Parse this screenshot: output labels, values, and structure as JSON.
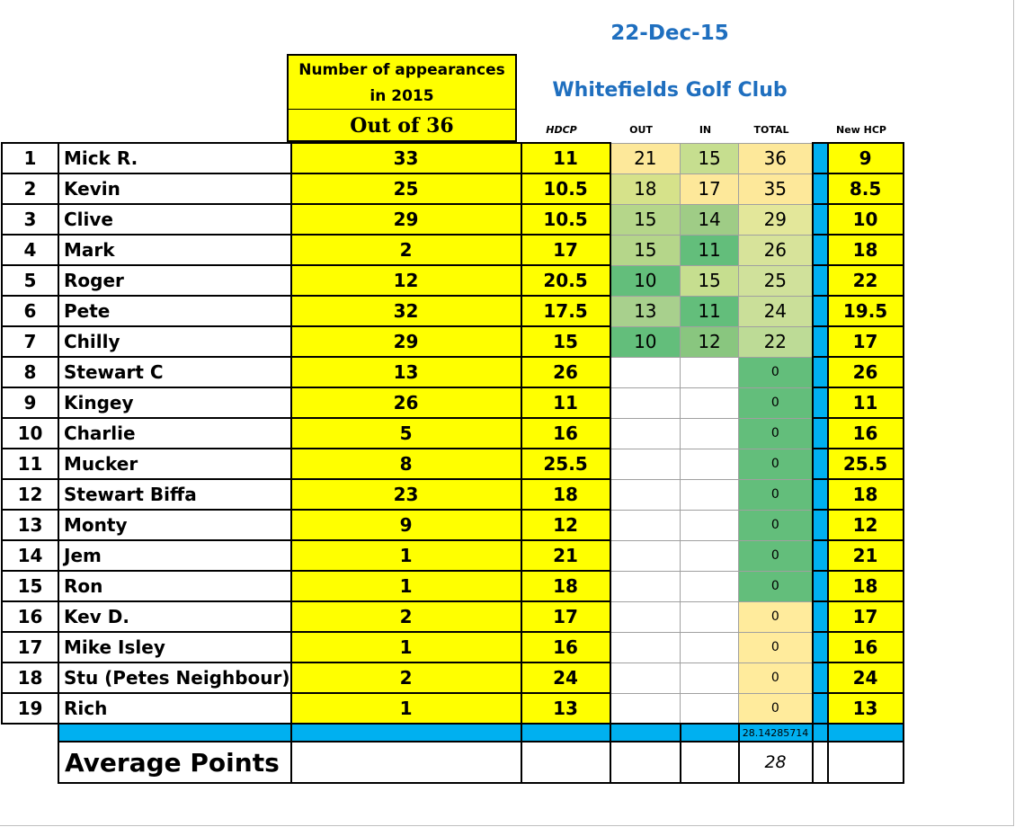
{
  "date": "22-Dec-15",
  "club": "Whitefields Golf Club",
  "appearances_header": "Number of appearances in 2015",
  "out_of": "Out of 36",
  "headers": {
    "hdcp": "HDCP",
    "out": "OUT",
    "in": "IN",
    "total": "TOTAL",
    "new_hcp": "New HCP"
  },
  "colors": {
    "yellow": "#ffff00",
    "blue_bar": "#00b0f0",
    "title_blue": "#1f6fbf"
  },
  "players": [
    {
      "pos": "1",
      "name": "Mick R.",
      "apps": "33",
      "hdcp": "11",
      "out": "21",
      "in": "15",
      "total": "36",
      "new": "9"
    },
    {
      "pos": "2",
      "name": "Kevin",
      "apps": "25",
      "hdcp": "10.5",
      "out": "18",
      "in": "17",
      "total": "35",
      "new": "8.5"
    },
    {
      "pos": "3",
      "name": "Clive",
      "apps": "29",
      "hdcp": "10.5",
      "out": "15",
      "in": "14",
      "total": "29",
      "new": "10"
    },
    {
      "pos": "4",
      "name": "Mark",
      "apps": "2",
      "hdcp": "17",
      "out": "15",
      "in": "11",
      "total": "26",
      "new": "18"
    },
    {
      "pos": "5",
      "name": "Roger",
      "apps": "12",
      "hdcp": "20.5",
      "out": "10",
      "in": "15",
      "total": "25",
      "new": "22"
    },
    {
      "pos": "6",
      "name": "Pete",
      "apps": "32",
      "hdcp": "17.5",
      "out": "13",
      "in": "11",
      "total": "24",
      "new": "19.5"
    },
    {
      "pos": "7",
      "name": "Chilly",
      "apps": "29",
      "hdcp": "15",
      "out": "10",
      "in": "12",
      "total": "22",
      "new": "17"
    },
    {
      "pos": "8",
      "name": "Stewart C",
      "apps": "13",
      "hdcp": "26",
      "out": "",
      "in": "",
      "total": "0",
      "new": "26"
    },
    {
      "pos": "9",
      "name": "Kingey",
      "apps": "26",
      "hdcp": "11",
      "out": "",
      "in": "",
      "total": "0",
      "new": "11"
    },
    {
      "pos": "10",
      "name": "Charlie",
      "apps": "5",
      "hdcp": "16",
      "out": "",
      "in": "",
      "total": "0",
      "new": "16"
    },
    {
      "pos": "11",
      "name": "Mucker",
      "apps": "8",
      "hdcp": "25.5",
      "out": "",
      "in": "",
      "total": "0",
      "new": "25.5"
    },
    {
      "pos": "12",
      "name": "Stewart Biffa",
      "apps": "23",
      "hdcp": "18",
      "out": "",
      "in": "",
      "total": "0",
      "new": "18"
    },
    {
      "pos": "13",
      "name": "Monty",
      "apps": "9",
      "hdcp": "12",
      "out": "",
      "in": "",
      "total": "0",
      "new": "12"
    },
    {
      "pos": "14",
      "name": "Jem",
      "apps": "1",
      "hdcp": "21",
      "out": "",
      "in": "",
      "total": "0",
      "new": "21"
    },
    {
      "pos": "15",
      "name": "Ron",
      "apps": "1",
      "hdcp": "18",
      "out": "",
      "in": "",
      "total": "0",
      "new": "18"
    },
    {
      "pos": "16",
      "name": "Kev D.",
      "apps": "2",
      "hdcp": "17",
      "out": "",
      "in": "",
      "total": "0",
      "new": "17"
    },
    {
      "pos": "17",
      "name": "Mike Isley",
      "apps": "1",
      "hdcp": "16",
      "out": "",
      "in": "",
      "total": "0",
      "new": "16"
    },
    {
      "pos": "18",
      "name": "Stu (Petes Neighbour)",
      "apps": "2",
      "hdcp": "24",
      "out": "",
      "in": "",
      "total": "0",
      "new": "24"
    },
    {
      "pos": "19",
      "name": "Rich",
      "apps": "1",
      "hdcp": "13",
      "out": "",
      "in": "",
      "total": "0",
      "new": "13"
    }
  ],
  "cell_colors": {
    "out": [
      "#fde89a",
      "#d6e28a",
      "#b5d68a",
      "#b5d68a",
      "#63be7b",
      "#a8d08d",
      "#63be7b"
    ],
    "in": [
      "#c6de8f",
      "#fde89a",
      "#9fcc86",
      "#63be7b",
      "#c6de8f",
      "#63be7b",
      "#89c67f"
    ],
    "total": [
      "#fde89a",
      "#fde89a",
      "#e3e79a",
      "#d7e39a",
      "#d0e19b",
      "#cadf99",
      "#bddb96",
      "#63be7b",
      "#63be7b",
      "#63be7b",
      "#63be7b",
      "#63be7b",
      "#63be7b",
      "#63be7b",
      "#63be7b",
      "#ffeb9c",
      "#ffeb9c",
      "#ffeb9c",
      "#ffeb9c"
    ]
  },
  "average_raw": "28.14285714",
  "average_label": "Average Points",
  "average_value": "28"
}
